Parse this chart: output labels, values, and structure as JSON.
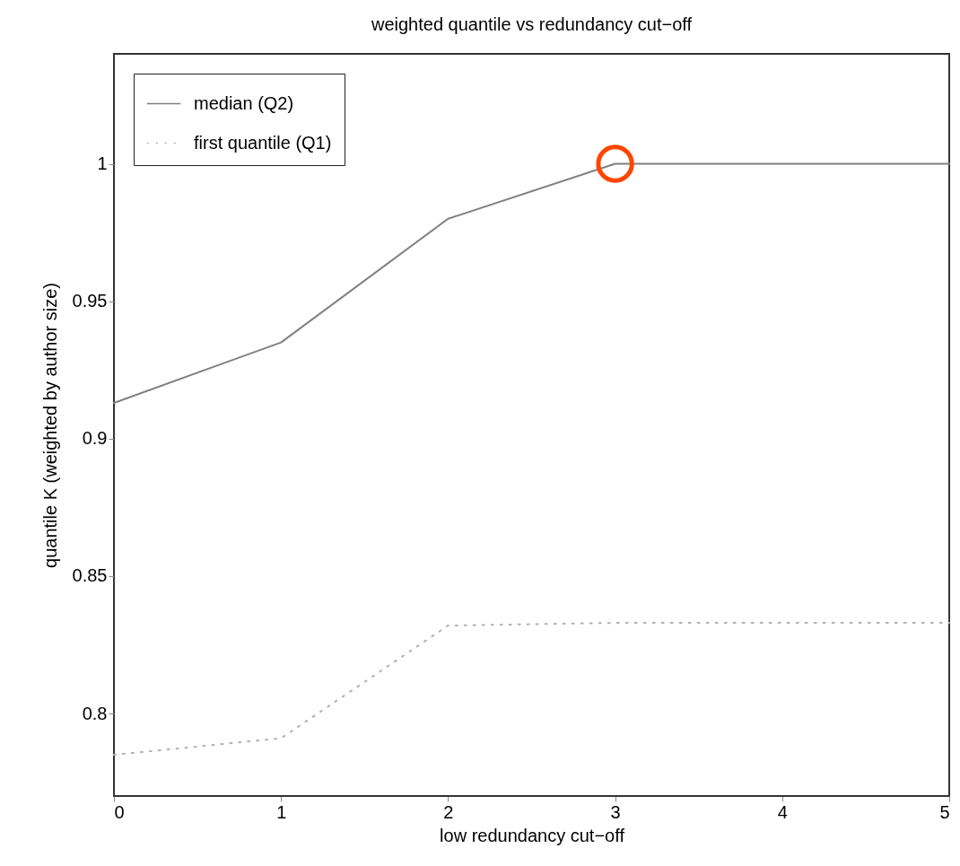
{
  "chart_data": {
    "type": "line",
    "title": "weighted quantile vs redundancy cut−off",
    "xlabel": "low redundancy cut−off",
    "ylabel": "quantile K (weighted by author size)",
    "x": [
      0,
      1,
      2,
      3,
      4,
      5
    ],
    "series": [
      {
        "name": "median (Q2)",
        "color": "#808080",
        "line_style": "solid",
        "values": [
          0.913,
          0.935,
          0.98,
          1,
          1,
          1
        ]
      },
      {
        "name": "first quantile (Q1)",
        "color": "#b0b0b0",
        "line_style": "dotted",
        "values": [
          0.785,
          0.791,
          0.832,
          0.833,
          0.833,
          0.833
        ]
      },
      {
        "type": "scatter",
        "marker": "circle",
        "color": "#ff4500",
        "x": [
          3
        ],
        "values": [
          1
        ]
      }
    ],
    "xlim": [
      0,
      5
    ],
    "xticks": [
      0,
      1,
      2,
      3,
      4,
      5
    ],
    "ylim": [
      0.77,
      1.04
    ],
    "yticks": [
      0.8,
      0.85,
      0.9,
      0.95,
      1
    ],
    "grid": false,
    "legend": "top left",
    "marker": "none"
  }
}
